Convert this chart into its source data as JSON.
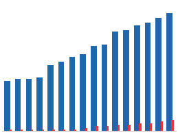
{
  "blue_values": [
    32,
    33,
    33,
    34,
    42,
    44,
    47,
    49,
    54,
    55,
    63,
    64,
    67,
    69,
    72,
    75
  ],
  "red_values": [
    1,
    1,
    1,
    1,
    1,
    1,
    1,
    2,
    3,
    3,
    4,
    4,
    5,
    5,
    6,
    7
  ],
  "bar_color_blue": "#2167AE",
  "bar_color_red": "#E8363A",
  "background_color": "#ffffff",
  "grid_color": "#dddddd",
  "ylim": [
    0,
    82
  ],
  "blue_bar_width": 0.55,
  "red_bar_width": 0.22,
  "group_width": 1.0
}
